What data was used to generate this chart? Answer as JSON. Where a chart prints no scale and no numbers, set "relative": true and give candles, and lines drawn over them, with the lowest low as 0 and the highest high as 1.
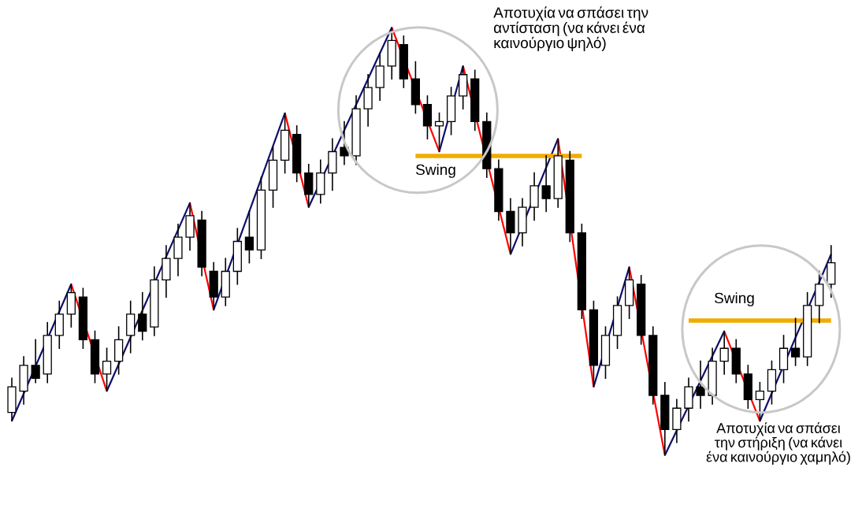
{
  "chart_data": {
    "type": "candlestick",
    "relative": true,
    "categories": [
      null,
      null,
      null,
      null,
      null,
      null,
      null,
      null,
      null,
      null,
      null,
      null,
      null,
      null,
      null,
      null,
      null,
      null,
      null,
      null,
      null,
      null,
      null,
      null,
      null,
      null,
      null,
      null,
      null,
      null,
      null,
      null,
      null,
      null,
      null,
      null,
      null,
      null,
      null,
      null,
      null,
      null,
      null,
      null,
      null,
      null,
      null,
      null,
      null,
      null,
      null,
      null,
      null,
      null,
      null,
      null,
      null,
      null,
      null,
      null,
      null,
      null,
      null,
      null,
      null,
      null,
      null,
      null,
      null,
      null
    ],
    "ohlc": [
      [
        0.1,
        0.18,
        0.08,
        0.16
      ],
      [
        0.15,
        0.23,
        0.12,
        0.21
      ],
      [
        0.21,
        0.27,
        0.17,
        0.18
      ],
      [
        0.19,
        0.31,
        0.17,
        0.28
      ],
      [
        0.28,
        0.36,
        0.25,
        0.33
      ],
      [
        0.33,
        0.4,
        0.3,
        0.38
      ],
      [
        0.37,
        0.39,
        0.25,
        0.27
      ],
      [
        0.27,
        0.29,
        0.17,
        0.19
      ],
      [
        0.19,
        0.25,
        0.15,
        0.22
      ],
      [
        0.22,
        0.3,
        0.19,
        0.27
      ],
      [
        0.28,
        0.36,
        0.24,
        0.33
      ],
      [
        0.33,
        0.38,
        0.27,
        0.29
      ],
      [
        0.3,
        0.44,
        0.28,
        0.41
      ],
      [
        0.41,
        0.49,
        0.37,
        0.46
      ],
      [
        0.46,
        0.54,
        0.42,
        0.51
      ],
      [
        0.51,
        0.59,
        0.48,
        0.56
      ],
      [
        0.55,
        0.57,
        0.42,
        0.44
      ],
      [
        0.43,
        0.45,
        0.34,
        0.37
      ],
      [
        0.37,
        0.46,
        0.35,
        0.43
      ],
      [
        0.43,
        0.53,
        0.4,
        0.5
      ],
      [
        0.51,
        0.57,
        0.45,
        0.48
      ],
      [
        0.48,
        0.65,
        0.46,
        0.62
      ],
      [
        0.62,
        0.72,
        0.58,
        0.69
      ],
      [
        0.69,
        0.8,
        0.66,
        0.76
      ],
      [
        0.75,
        0.77,
        0.64,
        0.66
      ],
      [
        0.66,
        0.68,
        0.58,
        0.61
      ],
      [
        0.61,
        0.69,
        0.59,
        0.66
      ],
      [
        0.66,
        0.74,
        0.62,
        0.71
      ],
      [
        0.72,
        0.78,
        0.68,
        0.7
      ],
      [
        0.7,
        0.84,
        0.68,
        0.81
      ],
      [
        0.81,
        0.89,
        0.77,
        0.86
      ],
      [
        0.86,
        0.94,
        0.83,
        0.91
      ],
      [
        0.91,
        1.0,
        0.88,
        0.97
      ],
      [
        0.96,
        0.98,
        0.86,
        0.88
      ],
      [
        0.88,
        0.92,
        0.8,
        0.82
      ],
      [
        0.82,
        0.84,
        0.74,
        0.77
      ],
      [
        0.77,
        0.8,
        0.71,
        0.78
      ],
      [
        0.78,
        0.86,
        0.75,
        0.84
      ],
      [
        0.84,
        0.91,
        0.81,
        0.89
      ],
      [
        0.88,
        0.9,
        0.76,
        0.78
      ],
      [
        0.78,
        0.8,
        0.65,
        0.67
      ],
      [
        0.67,
        0.69,
        0.55,
        0.57
      ],
      [
        0.57,
        0.6,
        0.47,
        0.52
      ],
      [
        0.52,
        0.6,
        0.49,
        0.58
      ],
      [
        0.58,
        0.66,
        0.55,
        0.63
      ],
      [
        0.63,
        0.7,
        0.57,
        0.6
      ],
      [
        0.6,
        0.74,
        0.58,
        0.7
      ],
      [
        0.69,
        0.71,
        0.5,
        0.52
      ],
      [
        0.52,
        0.54,
        0.32,
        0.34
      ],
      [
        0.34,
        0.36,
        0.16,
        0.21
      ],
      [
        0.21,
        0.3,
        0.18,
        0.28
      ],
      [
        0.28,
        0.37,
        0.25,
        0.35
      ],
      [
        0.35,
        0.44,
        0.32,
        0.41
      ],
      [
        0.4,
        0.42,
        0.26,
        0.28
      ],
      [
        0.28,
        0.3,
        0.12,
        0.14
      ],
      [
        0.14,
        0.17,
        0.0,
        0.06
      ],
      [
        0.06,
        0.13,
        0.03,
        0.11
      ],
      [
        0.11,
        0.18,
        0.08,
        0.16
      ],
      [
        0.16,
        0.22,
        0.11,
        0.14
      ],
      [
        0.14,
        0.25,
        0.12,
        0.22
      ],
      [
        0.22,
        0.29,
        0.19,
        0.25
      ],
      [
        0.25,
        0.27,
        0.17,
        0.19
      ],
      [
        0.19,
        0.21,
        0.11,
        0.13
      ],
      [
        0.13,
        0.17,
        0.08,
        0.15
      ],
      [
        0.15,
        0.22,
        0.12,
        0.2
      ],
      [
        0.2,
        0.28,
        0.17,
        0.25
      ],
      [
        0.25,
        0.32,
        0.21,
        0.23
      ],
      [
        0.23,
        0.38,
        0.21,
        0.35
      ],
      [
        0.35,
        0.43,
        0.31,
        0.4
      ],
      [
        0.4,
        0.49,
        0.37,
        0.45
      ]
    ],
    "series": [
      {
        "type": "line",
        "color": "#0d0d6b",
        "values": [
          0.08,
          null,
          null,
          null,
          null,
          0.4,
          null,
          null,
          0.15,
          null,
          null,
          null,
          null,
          null,
          null,
          0.59,
          null,
          0.34,
          null,
          null,
          null,
          null,
          null,
          0.8,
          null,
          0.58,
          null,
          null,
          null,
          null,
          null,
          null,
          1.0,
          null,
          null,
          null,
          0.71,
          null,
          0.91,
          null,
          null,
          null,
          0.47,
          null,
          null,
          null,
          0.74,
          null,
          null,
          0.16,
          null,
          null,
          0.44,
          null,
          null,
          0.0,
          null,
          null,
          null,
          null,
          0.29,
          null,
          null,
          0.08,
          null,
          null,
          null,
          null,
          null,
          0.47
        ]
      },
      {
        "type": "line",
        "color": "#ff0000",
        "values": [
          null,
          null,
          null,
          null,
          null,
          0.4,
          null,
          null,
          0.15,
          null,
          null,
          null,
          null,
          null,
          null,
          0.59,
          null,
          0.34,
          null,
          null,
          null,
          null,
          null,
          0.8,
          null,
          0.58,
          null,
          null,
          null,
          null,
          null,
          null,
          1.0,
          null,
          null,
          null,
          0.71,
          null,
          0.91,
          null,
          null,
          null,
          0.47,
          null,
          null,
          null,
          0.74,
          null,
          null,
          0.16,
          null,
          null,
          0.44,
          null,
          null,
          0.0,
          null,
          null,
          null,
          null,
          0.29,
          null,
          null,
          0.08,
          null,
          null,
          null,
          null,
          null,
          null
        ]
      },
      {
        "type": "line",
        "color": "#f0ac00",
        "values": [
          null,
          null,
          null,
          null,
          null,
          null,
          null,
          null,
          null,
          null,
          null,
          null,
          null,
          null,
          null,
          null,
          null,
          null,
          null,
          null,
          null,
          null,
          null,
          null,
          null,
          null,
          null,
          null,
          null,
          null,
          null,
          null,
          null,
          null,
          0.7,
          null,
          null,
          null,
          null,
          null,
          null,
          null,
          null,
          null,
          null,
          null,
          null,
          null,
          0.7,
          null,
          null,
          null,
          null,
          null,
          null,
          null,
          null,
          0.315,
          null,
          null,
          null,
          null,
          null,
          null,
          null,
          null,
          null,
          null,
          null,
          0.315
        ]
      }
    ],
    "annotations": [
      "Αποτυχία να σπάσει την αντίσταση (να κάνει ένα καινούργιο ψηλό)",
      "Αποτυχία να σπάσει την στήριξη (να κάνει ένα καινούργιο χαμηλό)",
      "Swing",
      "Swing"
    ]
  }
}
